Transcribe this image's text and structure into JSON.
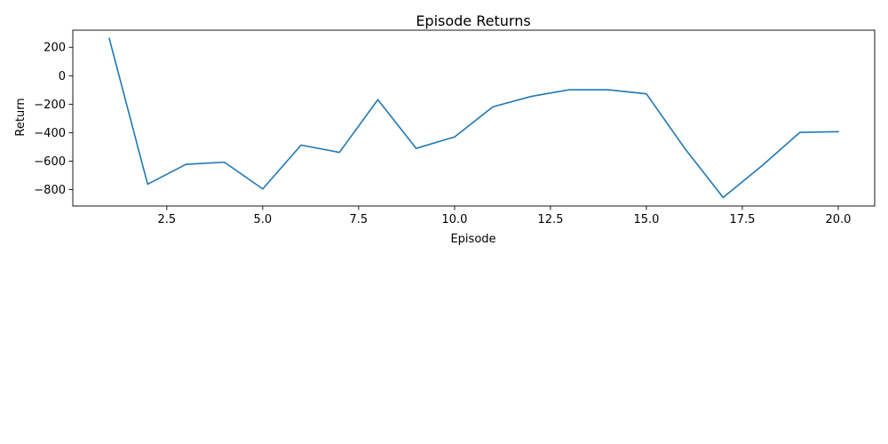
{
  "chart_data": {
    "type": "line",
    "title": "Episode Returns",
    "xlabel": "Episode",
    "ylabel": "Return",
    "xlim": [
      0.05,
      20.95
    ],
    "ylim": [
      -915,
      320
    ],
    "xticks": [
      2.5,
      5.0,
      7.5,
      10.0,
      12.5,
      15.0,
      17.5,
      20.0
    ],
    "xtick_labels": [
      "2.5",
      "5.0",
      "7.5",
      "10.0",
      "12.5",
      "15.0",
      "17.5",
      "20.0"
    ],
    "yticks": [
      -800,
      -600,
      -400,
      -200,
      0,
      200
    ],
    "ytick_labels": [
      "−800",
      "−600",
      "−400",
      "−200",
      "0",
      "200"
    ],
    "grid": false,
    "series": [
      {
        "name": "Return",
        "color": "#1f77b4",
        "x": [
          1,
          2,
          3,
          4,
          5,
          6,
          7,
          8,
          9,
          10,
          11,
          12,
          13,
          14,
          15,
          16,
          17,
          18,
          19,
          20
        ],
        "values": [
          262,
          -762,
          -622,
          -607,
          -795,
          -487,
          -538,
          -168,
          -510,
          -430,
          -218,
          -145,
          -98,
          -98,
          -127,
          -510,
          -855,
          -635,
          -398,
          -393
        ]
      }
    ]
  }
}
